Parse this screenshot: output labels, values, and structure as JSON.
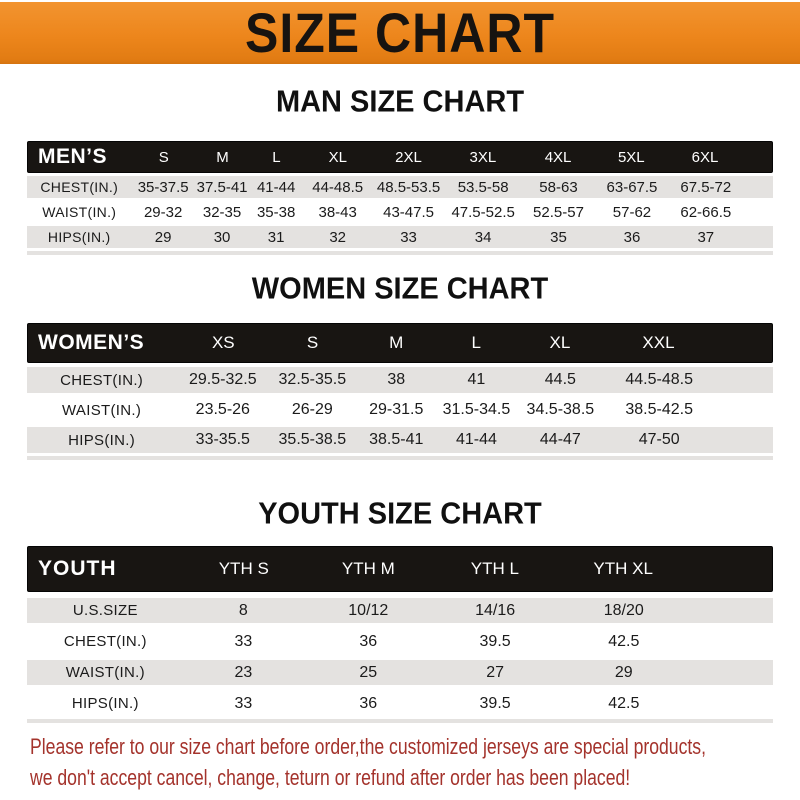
{
  "banner": {
    "title": "SIZE CHART",
    "bg_color": "#ED861C",
    "text_color": "#171310"
  },
  "sections": {
    "men": {
      "title": "MAN SIZE CHART",
      "corner": "MEN’S",
      "columns": [
        "S",
        "M",
        "L",
        "XL",
        "2XL",
        "3XL",
        "4XL",
        "5XL",
        "6XL"
      ],
      "rows": [
        {
          "label": "CHEST(IN.)",
          "values": [
            "35-37.5",
            "37.5-41",
            "41-44",
            "44-48.5",
            "48.5-53.5",
            "53.5-58",
            "58-63",
            "63-67.5",
            "67.5-72"
          ]
        },
        {
          "label": "WAIST(IN.)",
          "values": [
            "29-32",
            "32-35",
            "35-38",
            "38-43",
            "43-47.5",
            "47.5-52.5",
            "52.5-57",
            "57-62",
            "62-66.5"
          ]
        },
        {
          "label": "HIPS(IN.)",
          "values": [
            "29",
            "30",
            "31",
            "32",
            "33",
            "34",
            "35",
            "36",
            "37"
          ]
        }
      ]
    },
    "women": {
      "title": "WOMEN SIZE CHART",
      "corner": "WOMEN’S",
      "columns": [
        "XS",
        "S",
        "M",
        "L",
        "XL",
        "XXL"
      ],
      "rows": [
        {
          "label": "CHEST(IN.)",
          "values": [
            "29.5-32.5",
            "32.5-35.5",
            "38",
            "41",
            "44.5",
            "44.5-48.5"
          ]
        },
        {
          "label": "WAIST(IN.)",
          "values": [
            "23.5-26",
            "26-29",
            "29-31.5",
            "31.5-34.5",
            "34.5-38.5",
            "38.5-42.5"
          ]
        },
        {
          "label": "HIPS(IN.)",
          "values": [
            "33-35.5",
            "35.5-38.5",
            "38.5-41",
            "41-44",
            "44-47",
            "47-50"
          ]
        }
      ]
    },
    "youth": {
      "title": "YOUTH SIZE CHART",
      "corner": "YOUTH",
      "columns": [
        "YTH S",
        "YTH M",
        "YTH L",
        "YTH XL"
      ],
      "rows": [
        {
          "label": "U.S.SIZE",
          "values": [
            "8",
            "10/12",
            "14/16",
            "18/20"
          ]
        },
        {
          "label": "CHEST(IN.)",
          "values": [
            "33",
            "36",
            "39.5",
            "42.5"
          ]
        },
        {
          "label": "WAIST(IN.)",
          "values": [
            "23",
            "25",
            "27",
            "29"
          ]
        },
        {
          "label": "HIPS(IN.)",
          "values": [
            "33",
            "36",
            "39.5",
            "42.5"
          ]
        }
      ]
    }
  },
  "footer": {
    "line1": "Please refer to our size chart before order,the customized jerseys are special products,",
    "line2": "we don't accept cancel, change, teturn or refund after order has been placed!",
    "text_color": "#A4332C"
  },
  "colors": {
    "banner_bg": "#ED861C",
    "header_bar_bg": "#181512",
    "row_alt_bg": "#E4E2E0"
  }
}
